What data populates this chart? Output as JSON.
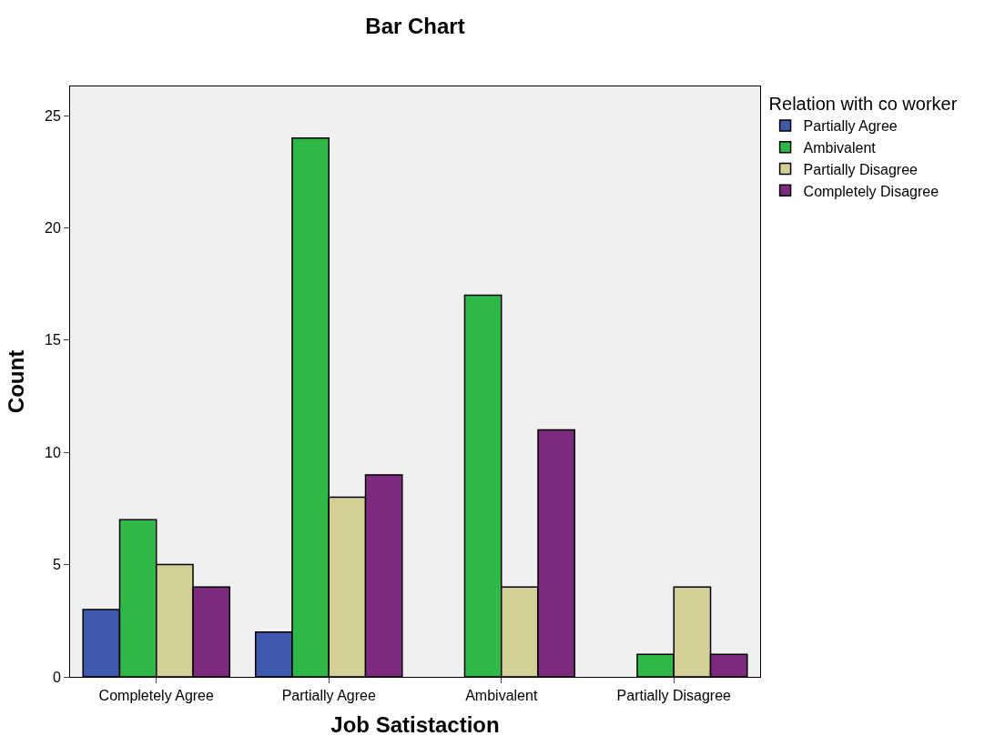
{
  "chart_data": {
    "type": "bar",
    "title": "Bar Chart",
    "xlabel": "Job Satistaction",
    "ylabel": "Count",
    "legend_title": "Relation with co worker",
    "categories": [
      "Completely Agree",
      "Partially Agree",
      "Ambivalent",
      "Partially Disagree"
    ],
    "series": [
      {
        "name": "Partially Agree",
        "color": "#3e58ac",
        "values": [
          3,
          2,
          null,
          null
        ]
      },
      {
        "name": "Ambivalent",
        "color": "#2eb848",
        "values": [
          7,
          24,
          17,
          1
        ]
      },
      {
        "name": "Partially Disagree",
        "color": "#d4cf96",
        "values": [
          5,
          8,
          4,
          4
        ]
      },
      {
        "name": "Completely Disagree",
        "color": "#7e2a7e",
        "values": [
          4,
          9,
          11,
          1
        ]
      }
    ],
    "ylim": [
      0,
      26.3
    ],
    "yticks": [
      0,
      5,
      10,
      15,
      20,
      25
    ],
    "grid": false,
    "legend": "top right"
  }
}
